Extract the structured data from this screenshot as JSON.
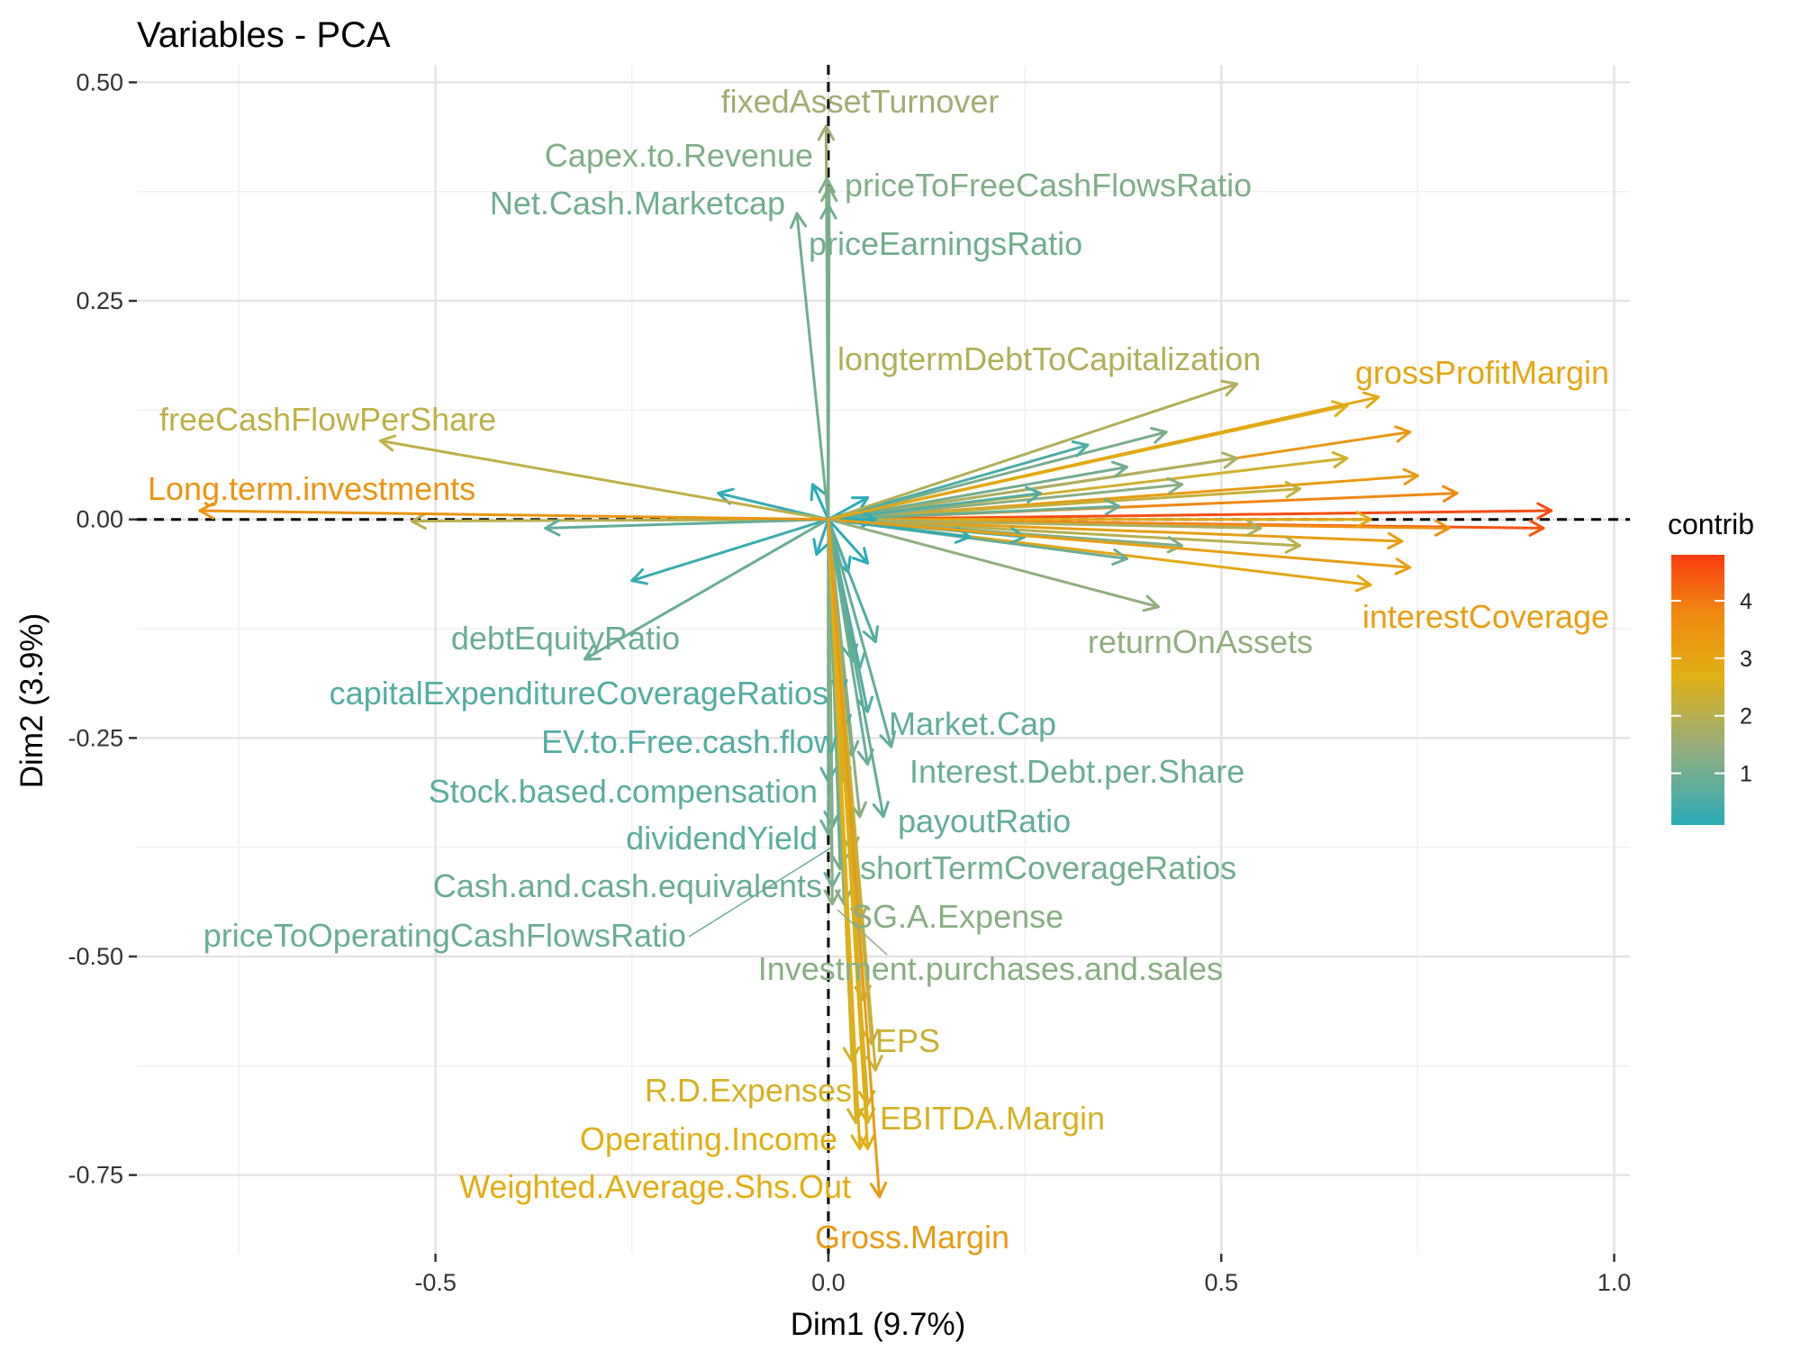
{
  "chart_data": {
    "type": "scatter",
    "subtype": "pca-variable-correlation-arrows",
    "title": "Variables - PCA",
    "xlabel": "Dim1 (9.7%)",
    "ylabel": "Dim2 (3.9%)",
    "xlim": [
      -0.88,
      1.02
    ],
    "ylim": [
      -0.84,
      0.52
    ],
    "x_ticks": [
      -0.5,
      0.0,
      0.5,
      1.0
    ],
    "x_tick_labels": [
      "-0.5",
      "0.0",
      "0.5",
      "1.0"
    ],
    "y_ticks": [
      0.5,
      0.25,
      0.0,
      -0.25,
      -0.5,
      -0.75
    ],
    "y_tick_labels": [
      "0.50",
      "0.25",
      "0.00",
      "-0.25",
      "-0.50",
      "-0.75"
    ],
    "grid": true,
    "reference_lines": {
      "x": 0,
      "y": 0,
      "style": "dashed"
    },
    "legend": {
      "title": "contrib",
      "type": "gradient",
      "position": "right",
      "range": [
        0.1,
        4.8
      ],
      "ticks": [
        1,
        2,
        3,
        4
      ],
      "colors": [
        "#2aacb8",
        "#e6b800",
        "#fb3c10"
      ]
    },
    "labeled_variables": [
      {
        "name": "fixedAssetTurnover",
        "x": -0.003,
        "y": 0.45,
        "contrib": 1.6
      },
      {
        "name": "Capex.to.Revenue",
        "x": -0.002,
        "y": 0.39,
        "contrib": 1.2
      },
      {
        "name": "priceToFreeCashFlowsRatio",
        "x": 0.001,
        "y": 0.38,
        "contrib": 1.2
      },
      {
        "name": "Net.Cash.Marketcap",
        "x": -0.04,
        "y": 0.35,
        "contrib": 1.0
      },
      {
        "name": "priceEarningsRatio",
        "x": 0.0,
        "y": 0.36,
        "contrib": 1.0
      },
      {
        "name": "longtermDebtToCapitalization",
        "x": 0.52,
        "y": 0.155,
        "contrib": 1.9
      },
      {
        "name": "grossProfitMargin",
        "x": 0.7,
        "y": 0.14,
        "contrib": 3.0
      },
      {
        "name": "freeCashFlowPerShare",
        "x": -0.57,
        "y": 0.09,
        "contrib": 2.1
      },
      {
        "name": "Long.term.investments",
        "x": -0.8,
        "y": 0.01,
        "contrib": 3.5
      },
      {
        "name": "interestCoverage",
        "x": 0.74,
        "y": -0.055,
        "contrib": 3.2
      },
      {
        "name": "returnOnAssets",
        "x": 0.42,
        "y": -0.1,
        "contrib": 1.4
      },
      {
        "name": "debtEquityRatio",
        "x": -0.31,
        "y": -0.16,
        "contrib": 0.9
      },
      {
        "name": "capitalExpenditureCoverageRatios",
        "x": 0.015,
        "y": -0.2,
        "contrib": 0.6
      },
      {
        "name": "EV.to.Free.cash.flow",
        "x": 0.02,
        "y": -0.24,
        "contrib": 0.6
      },
      {
        "name": "Market.Cap",
        "x": 0.08,
        "y": -0.26,
        "contrib": 0.8
      },
      {
        "name": "Interest.Debt.per.Share",
        "x": 0.05,
        "y": -0.28,
        "contrib": 0.9
      },
      {
        "name": "Stock.based.compensation",
        "x": 0.0,
        "y": -0.3,
        "contrib": 0.7
      },
      {
        "name": "payoutRatio",
        "x": 0.07,
        "y": -0.34,
        "contrib": 0.8
      },
      {
        "name": "dividendYield",
        "x": 0.005,
        "y": -0.35,
        "contrib": 0.7
      },
      {
        "name": "shortTermCoverageRatios",
        "x": 0.015,
        "y": -0.4,
        "contrib": 1.0
      },
      {
        "name": "Cash.and.cash.equivalents",
        "x": 0.005,
        "y": -0.42,
        "contrib": 0.9
      },
      {
        "name": "SG.A.Expense",
        "x": 0.02,
        "y": -0.44,
        "contrib": 1.3
      },
      {
        "name": "priceToOperatingCashFlowsRatio",
        "x": 0.0,
        "y": -0.36,
        "contrib": 0.9
      },
      {
        "name": "Investment.purchases.and.sales",
        "x": 0.005,
        "y": -0.44,
        "contrib": 1.3
      },
      {
        "name": "EPS",
        "x": 0.06,
        "y": -0.63,
        "contrib": 2.3
      },
      {
        "name": "R.D.Expenses",
        "x": 0.035,
        "y": -0.69,
        "contrib": 2.5
      },
      {
        "name": "EBITDA.Margin",
        "x": 0.05,
        "y": -0.67,
        "contrib": 2.5
      },
      {
        "name": "Operating.Income",
        "x": 0.04,
        "y": -0.72,
        "contrib": 2.7
      },
      {
        "name": "Weighted.Average.Shs.Out",
        "x": 0.05,
        "y": -0.72,
        "contrib": 2.8
      },
      {
        "name": "Gross.Margin",
        "x": 0.065,
        "y": -0.775,
        "contrib": 3.3
      }
    ],
    "unlabeled_variables": [
      {
        "x": 0.92,
        "y": 0.01,
        "contrib": 4.6
      },
      {
        "x": 0.91,
        "y": -0.01,
        "contrib": 4.5
      },
      {
        "x": 0.8,
        "y": 0.03,
        "contrib": 3.8
      },
      {
        "x": 0.79,
        "y": -0.01,
        "contrib": 3.6
      },
      {
        "x": 0.75,
        "y": 0.05,
        "contrib": 3.3
      },
      {
        "x": 0.73,
        "y": -0.025,
        "contrib": 3.2
      },
      {
        "x": 0.74,
        "y": 0.1,
        "contrib": 3.4
      },
      {
        "x": 0.69,
        "y": -0.075,
        "contrib": 3.0
      },
      {
        "x": 0.69,
        "y": 0.0,
        "contrib": 2.9
      },
      {
        "x": 0.66,
        "y": 0.13,
        "contrib": 2.7
      },
      {
        "x": 0.66,
        "y": 0.07,
        "contrib": 2.4
      },
      {
        "x": 0.6,
        "y": 0.035,
        "contrib": 2.2
      },
      {
        "x": 0.6,
        "y": -0.03,
        "contrib": 2.0
      },
      {
        "x": 0.55,
        "y": -0.01,
        "contrib": 1.8
      },
      {
        "x": 0.52,
        "y": 0.07,
        "contrib": 1.8
      },
      {
        "x": 0.45,
        "y": 0.04,
        "contrib": 1.3
      },
      {
        "x": 0.45,
        "y": -0.03,
        "contrib": 1.2
      },
      {
        "x": 0.43,
        "y": 0.1,
        "contrib": 1.1
      },
      {
        "x": 0.38,
        "y": 0.06,
        "contrib": 1.0
      },
      {
        "x": 0.33,
        "y": 0.085,
        "contrib": 0.5
      },
      {
        "x": 0.37,
        "y": 0.015,
        "contrib": 0.9
      },
      {
        "x": 0.38,
        "y": -0.045,
        "contrib": 0.9
      },
      {
        "x": 0.27,
        "y": 0.03,
        "contrib": 0.6
      },
      {
        "x": 0.25,
        "y": -0.02,
        "contrib": 0.4
      },
      {
        "x": 0.18,
        "y": -0.02,
        "contrib": 0.2
      },
      {
        "x": -0.53,
        "y": -0.002,
        "contrib": 2.0
      },
      {
        "x": -0.36,
        "y": -0.01,
        "contrib": 0.8
      },
      {
        "x": -0.14,
        "y": 0.03,
        "contrib": 0.2
      },
      {
        "x": -0.25,
        "y": -0.07,
        "contrib": 0.3
      },
      {
        "x": 0.05,
        "y": 0.025,
        "contrib": 0.1
      },
      {
        "x": 0.06,
        "y": 0.0,
        "contrib": 0.1
      },
      {
        "x": 0.05,
        "y": -0.05,
        "contrib": 0.1
      },
      {
        "x": -0.02,
        "y": 0.04,
        "contrib": 0.1
      },
      {
        "x": 0.025,
        "y": -0.06,
        "contrib": 0.1
      },
      {
        "x": -0.015,
        "y": -0.04,
        "contrib": 0.1
      },
      {
        "x": 0.06,
        "y": -0.14,
        "contrib": 0.6
      },
      {
        "x": 0.03,
        "y": -0.16,
        "contrib": 0.6
      },
      {
        "x": 0.04,
        "y": -0.17,
        "contrib": 0.7
      },
      {
        "x": 0.05,
        "y": -0.22,
        "contrib": 0.6
      },
      {
        "x": 0.03,
        "y": -0.27,
        "contrib": 1.0
      },
      {
        "x": 0.02,
        "y": -0.3,
        "contrib": 1.2
      },
      {
        "x": 0.04,
        "y": -0.34,
        "contrib": 1.3
      },
      {
        "x": 0.03,
        "y": -0.38,
        "contrib": 1.6
      },
      {
        "x": 0.04,
        "y": -0.46,
        "contrib": 1.8
      },
      {
        "x": 0.045,
        "y": -0.55,
        "contrib": 2.1
      },
      {
        "x": 0.055,
        "y": -0.6,
        "contrib": 2.2
      },
      {
        "x": 0.03,
        "y": -0.62,
        "contrib": 2.4
      },
      {
        "x": 0.05,
        "y": -0.69,
        "contrib": 2.6
      }
    ]
  }
}
